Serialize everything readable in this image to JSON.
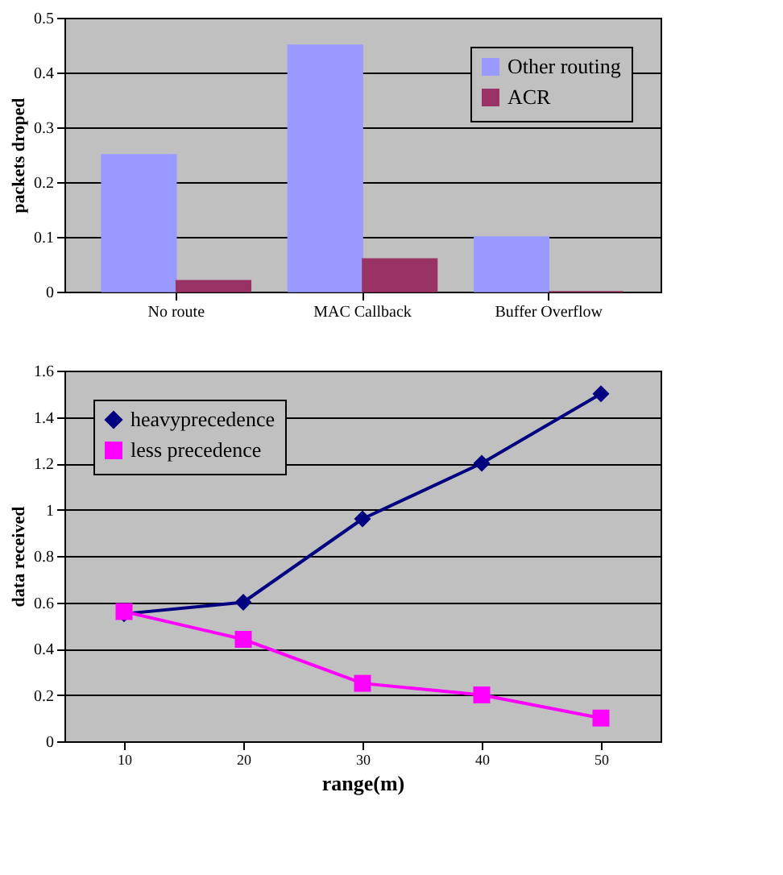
{
  "chart_data": [
    {
      "type": "bar",
      "ylabel": "packets droped",
      "categories": [
        "No route",
        "MAC Callback",
        "Buffer Overflow",
        null
      ],
      "series": [
        {
          "name": "Other routing",
          "color": "#9999ff",
          "values": [
            0.25,
            0.45,
            0.1,
            null
          ]
        },
        {
          "name": "ACR",
          "color": "#993366",
          "values": [
            0.02,
            0.06,
            0.0,
            null
          ]
        }
      ],
      "ylim": [
        0,
        0.5
      ],
      "yticks": [
        0,
        0.1,
        0.2,
        0.3,
        0.4,
        0.5
      ],
      "grid": "y",
      "legend": "top right"
    },
    {
      "type": "line",
      "xlabel": "range(m)",
      "ylabel": "data received",
      "categories": [
        "10",
        "20",
        "30",
        "40",
        "50"
      ],
      "series": [
        {
          "name": "heavyprecedence",
          "color": "#000080",
          "marker": "diamond",
          "values": [
            0.55,
            0.6,
            0.96,
            1.2,
            1.5
          ]
        },
        {
          "name": "less precedence",
          "color": "#ff00ff",
          "marker": "square",
          "values": [
            0.56,
            0.44,
            0.25,
            0.2,
            0.1
          ]
        }
      ],
      "ylim": [
        0,
        1.6
      ],
      "yticks": [
        0,
        0.2,
        0.4,
        0.6,
        0.8,
        1,
        1.2,
        1.4,
        1.6
      ],
      "grid": "y",
      "legend": "top left"
    }
  ]
}
